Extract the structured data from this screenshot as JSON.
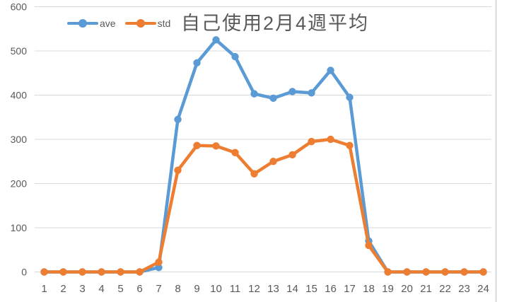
{
  "chart": {
    "title": "自己使用2月4週平均",
    "legend": {
      "items": [
        {
          "label": "ave",
          "color": "#5B9BD5"
        },
        {
          "label": "std",
          "color": "#ED7D31"
        }
      ]
    }
  },
  "chart_data": {
    "type": "line",
    "title": "自己使用2月4週平均",
    "categories": [
      1,
      2,
      3,
      4,
      5,
      6,
      7,
      8,
      9,
      10,
      11,
      12,
      13,
      14,
      15,
      16,
      17,
      18,
      19,
      20,
      21,
      22,
      23,
      24
    ],
    "series": [
      {
        "name": "ave",
        "color": "#5B9BD5",
        "values": [
          0,
          0,
          0,
          0,
          0,
          0,
          10,
          345,
          473,
          525,
          487,
          403,
          393,
          408,
          405,
          456,
          395,
          70,
          0,
          0,
          0,
          0,
          0,
          0
        ]
      },
      {
        "name": "std",
        "color": "#ED7D31",
        "values": [
          0,
          0,
          0,
          0,
          0,
          0,
          22,
          230,
          286,
          285,
          270,
          222,
          250,
          265,
          295,
          300,
          286,
          60,
          0,
          0,
          0,
          0,
          0,
          0
        ]
      }
    ],
    "xlabel": "",
    "ylabel": "",
    "y_ticks": [
      0,
      100,
      200,
      300,
      400,
      500,
      600
    ],
    "ylim": [
      0,
      600
    ],
    "grid": true,
    "marker": "circle",
    "legend_position": "top-left"
  },
  "style": {
    "grid_color": "#D9D9D9",
    "axis_text_color": "#595959",
    "right_border_color": "#CFCECE",
    "background": "#FFFFFF"
  }
}
